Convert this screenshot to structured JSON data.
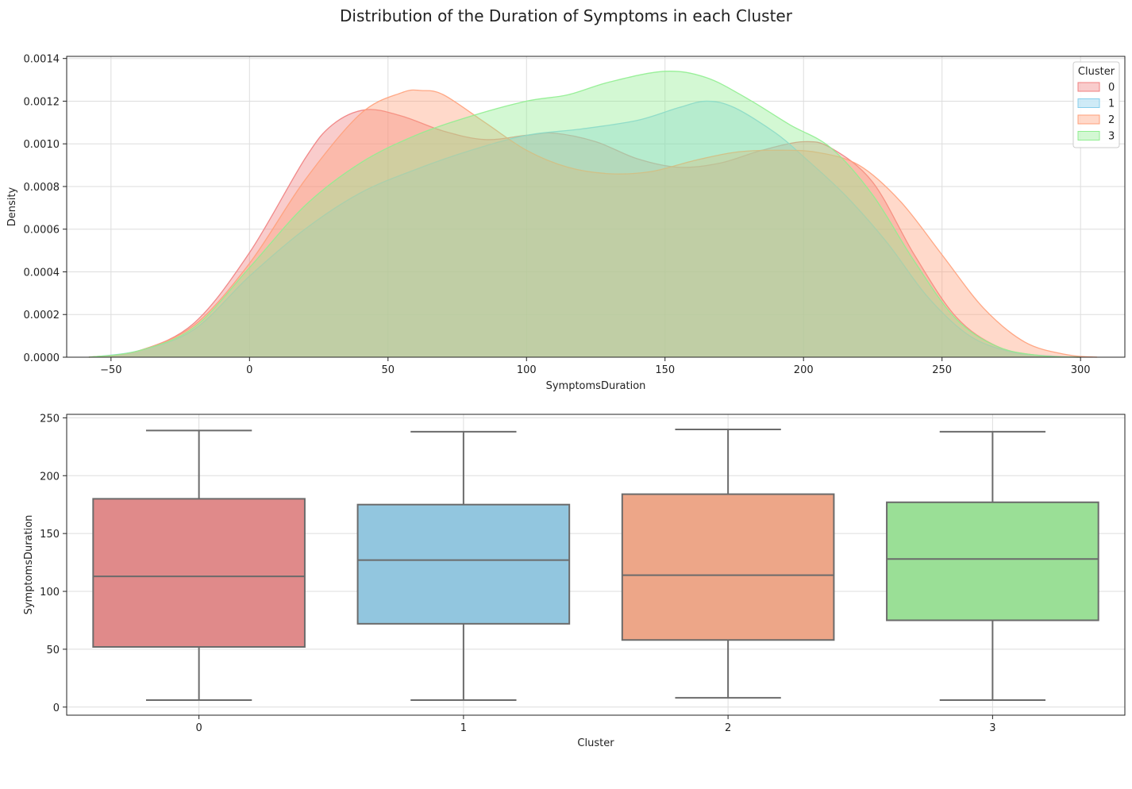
{
  "suptitle": "Distribution of the Duration of Symptoms in each Cluster",
  "chart_data": [
    {
      "type": "area",
      "subtype": "kde",
      "xlabel": "SymptomsDuration",
      "ylabel": "Density",
      "xlim": [
        -66,
        316
      ],
      "ylim": [
        0,
        0.00141
      ],
      "xticks": [
        -50,
        0,
        50,
        100,
        150,
        200,
        250,
        300
      ],
      "xtick_labels": [
        "−50",
        "0",
        "50",
        "100",
        "150",
        "200",
        "250",
        "300"
      ],
      "yticks": [
        0,
        0.0002,
        0.0004,
        0.0006,
        0.0008,
        0.001,
        0.0012,
        0.0014
      ],
      "ytick_labels": [
        "0.0000",
        "0.0002",
        "0.0004",
        "0.0006",
        "0.0008",
        "0.0010",
        "0.0012",
        "0.0014"
      ],
      "grid": true,
      "legend": {
        "title": "Cluster",
        "position": "top-right"
      },
      "series": [
        {
          "name": "0",
          "color": "#f08080",
          "x": [
            -58,
            -40,
            -20,
            0,
            20,
            30,
            42,
            55,
            70,
            85,
            100,
            110,
            125,
            140,
            155,
            170,
            185,
            200,
            210,
            225,
            240,
            255,
            270,
            285,
            300
          ],
          "y": [
            0.0,
            3e-05,
            0.00016,
            0.00049,
            0.00093,
            0.00109,
            0.00116,
            0.00113,
            0.00106,
            0.00102,
            0.00104,
            0.00105,
            0.00101,
            0.00093,
            0.00089,
            0.00091,
            0.00097,
            0.00101,
            0.00098,
            0.00082,
            0.00048,
            0.00019,
            5e-05,
            8e-06,
            0.0
          ]
        },
        {
          "name": "1",
          "color": "#87ceeb",
          "x": [
            -58,
            -40,
            -20,
            0,
            20,
            40,
            60,
            80,
            100,
            120,
            140,
            155,
            165,
            175,
            190,
            200,
            215,
            230,
            245,
            260,
            275,
            290,
            300
          ],
          "y": [
            0.0,
            3e-05,
            0.00013,
            0.00038,
            0.0006,
            0.00077,
            0.00088,
            0.00097,
            0.00104,
            0.00107,
            0.00111,
            0.00117,
            0.0012,
            0.00117,
            0.00105,
            0.00094,
            0.00076,
            0.00054,
            0.00028,
            0.0001,
            2.5e-05,
            5e-06,
            0.0
          ]
        },
        {
          "name": "2",
          "color": "#ffa07a",
          "x": [
            -58,
            -40,
            -20,
            0,
            20,
            40,
            55,
            62,
            70,
            85,
            100,
            115,
            130,
            145,
            160,
            175,
            190,
            205,
            220,
            235,
            250,
            265,
            280,
            295,
            306
          ],
          "y": [
            0.0,
            3e-05,
            0.00015,
            0.00044,
            0.00083,
            0.00114,
            0.00124,
            0.00125,
            0.00123,
            0.0011,
            0.00097,
            0.00089,
            0.00086,
            0.00087,
            0.00092,
            0.00096,
            0.00097,
            0.00096,
            0.0009,
            0.00073,
            0.00048,
            0.00023,
            7e-05,
            1.2e-05,
            0.0
          ]
        },
        {
          "name": "3",
          "color": "#90ee90",
          "x": [
            -58,
            -40,
            -20,
            0,
            20,
            40,
            60,
            80,
            100,
            115,
            130,
            150,
            165,
            180,
            195,
            210,
            225,
            240,
            255,
            270,
            285,
            300
          ],
          "y": [
            0.0,
            3e-05,
            0.00014,
            0.00042,
            0.00071,
            0.00091,
            0.00104,
            0.00113,
            0.0012,
            0.00123,
            0.00129,
            0.00134,
            0.00131,
            0.00121,
            0.00109,
            0.00098,
            0.00076,
            0.00045,
            0.00018,
            5e-05,
            8e-06,
            0.0
          ]
        }
      ]
    },
    {
      "type": "box",
      "xlabel": "Cluster",
      "ylabel": "SymptomsDuration",
      "ylim": [
        -7,
        253
      ],
      "yticks": [
        0,
        50,
        100,
        150,
        200,
        250
      ],
      "ytick_labels": [
        "0",
        "50",
        "100",
        "150",
        "200",
        "250"
      ],
      "grid": true,
      "categories": [
        "0",
        "1",
        "2",
        "3"
      ],
      "boxes": [
        {
          "category": "0",
          "color": "#e08a8a",
          "whislo": 6,
          "q1": 52,
          "median": 113,
          "q3": 180,
          "whishi": 239
        },
        {
          "category": "1",
          "color": "#92c6df",
          "whislo": 6,
          "q1": 72,
          "median": 127,
          "q3": 175,
          "whishi": 238
        },
        {
          "category": "2",
          "color": "#eda688",
          "whislo": 8,
          "q1": 58,
          "median": 114,
          "q3": 184,
          "whishi": 240
        },
        {
          "category": "3",
          "color": "#9adf96",
          "whislo": 6,
          "q1": 75,
          "median": 128,
          "q3": 177,
          "whishi": 238
        }
      ]
    }
  ]
}
